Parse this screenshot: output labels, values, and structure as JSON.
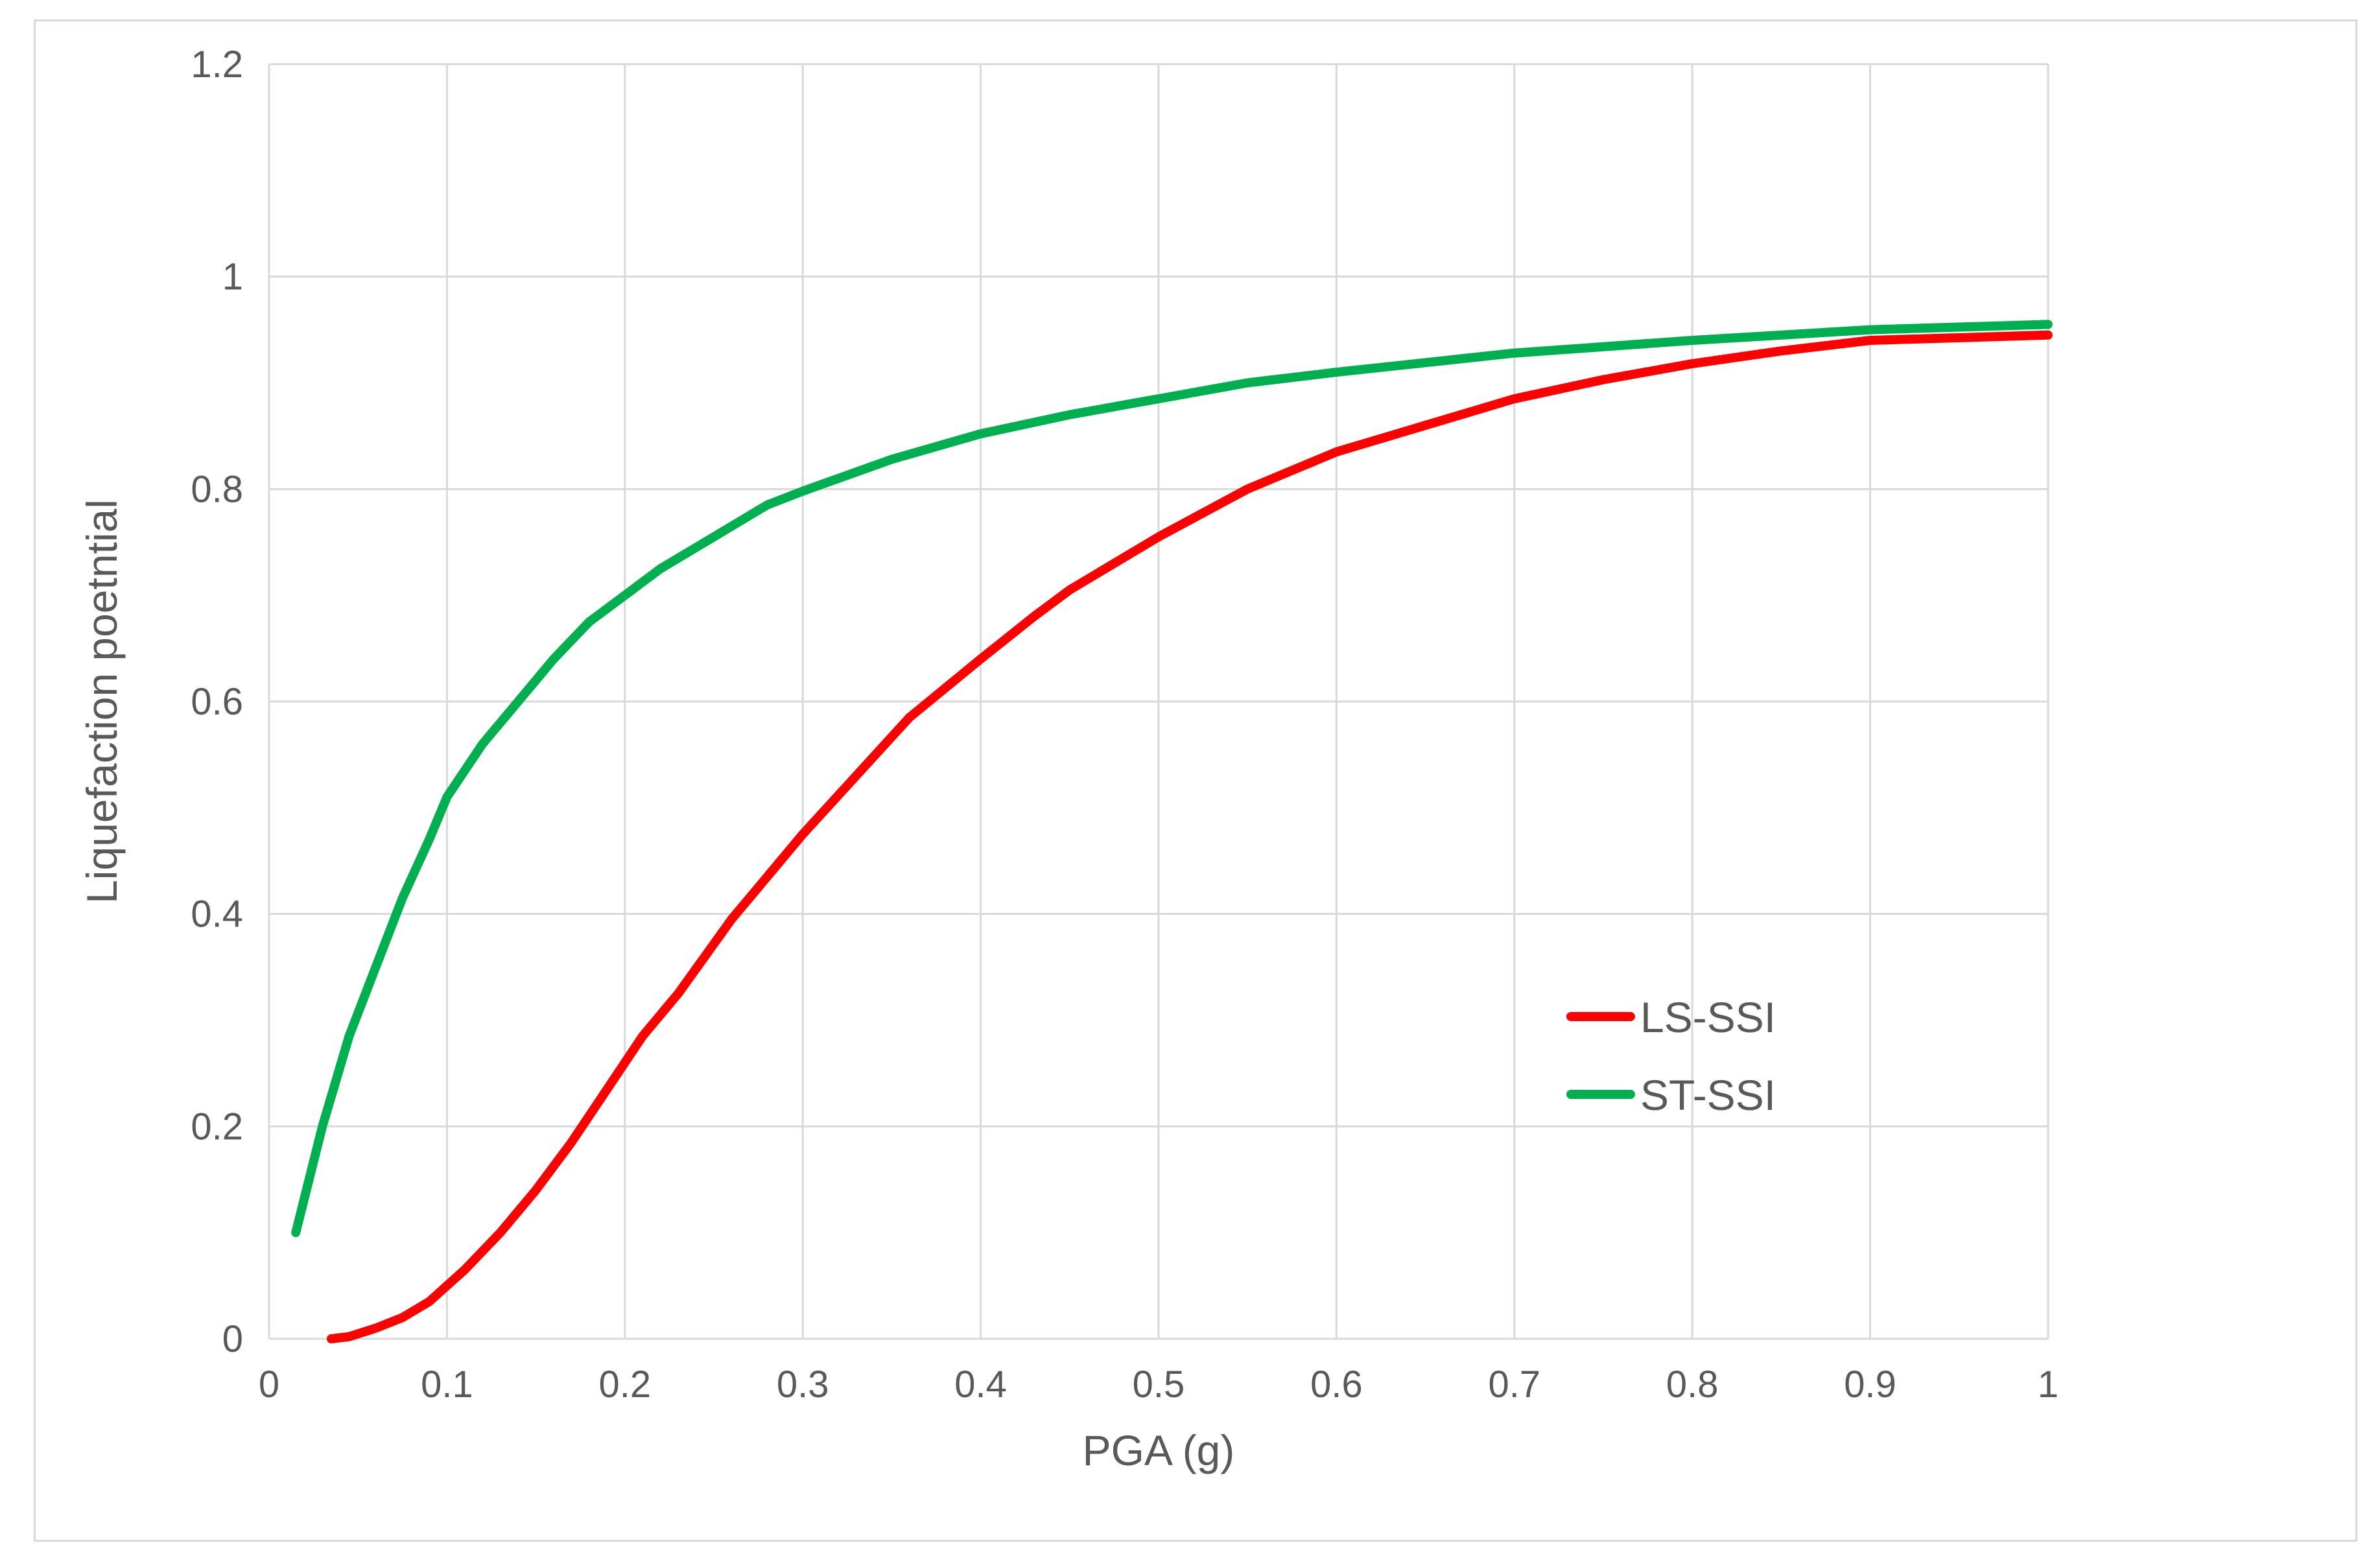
{
  "chart_data": {
    "type": "line",
    "xlabel": "PGA (g)",
    "ylabel": "Liquefaction poetntial",
    "xlim": [
      0,
      1
    ],
    "ylim": [
      0,
      1.2
    ],
    "x_ticks": [
      "0",
      "0.1",
      "0.2",
      "0.3",
      "0.4",
      "0.5",
      "0.6",
      "0.7",
      "0.8",
      "0.9",
      "1"
    ],
    "y_ticks": [
      "0",
      "0.2",
      "0.4",
      "0.6",
      "0.8",
      "1",
      "1.2"
    ],
    "grid": true,
    "legend_position": "right, lower-middle",
    "series": [
      {
        "name": "LS-SSI",
        "color": "#ff0000",
        "x": [
          0.035,
          0.045,
          0.06,
          0.075,
          0.09,
          0.1,
          0.11,
          0.13,
          0.15,
          0.17,
          0.19,
          0.21,
          0.23,
          0.26,
          0.27,
          0.3,
          0.33,
          0.36,
          0.4,
          0.43,
          0.45,
          0.5,
          0.55,
          0.6,
          0.65,
          0.7,
          0.75,
          0.8,
          0.85,
          0.9,
          1.0
        ],
        "y": [
          0.0,
          0.002,
          0.01,
          0.02,
          0.035,
          0.05,
          0.065,
          0.1,
          0.14,
          0.185,
          0.235,
          0.285,
          0.325,
          0.395,
          0.415,
          0.475,
          0.53,
          0.585,
          0.64,
          0.68,
          0.705,
          0.755,
          0.8,
          0.835,
          0.86,
          0.885,
          0.903,
          0.918,
          0.93,
          0.94,
          0.945
        ]
      },
      {
        "name": "ST-SSI",
        "color": "#00b050",
        "x": [
          0.015,
          0.03,
          0.045,
          0.06,
          0.075,
          0.09,
          0.1,
          0.12,
          0.14,
          0.16,
          0.18,
          0.2,
          0.22,
          0.25,
          0.28,
          0.3,
          0.35,
          0.4,
          0.45,
          0.5,
          0.55,
          0.6,
          0.7,
          0.8,
          0.9,
          1.0
        ],
        "y": [
          0.1,
          0.2,
          0.285,
          0.35,
          0.415,
          0.47,
          0.51,
          0.56,
          0.6,
          0.64,
          0.675,
          0.7,
          0.725,
          0.755,
          0.785,
          0.798,
          0.828,
          0.852,
          0.87,
          0.885,
          0.9,
          0.91,
          0.928,
          0.94,
          0.95,
          0.955
        ]
      }
    ]
  }
}
